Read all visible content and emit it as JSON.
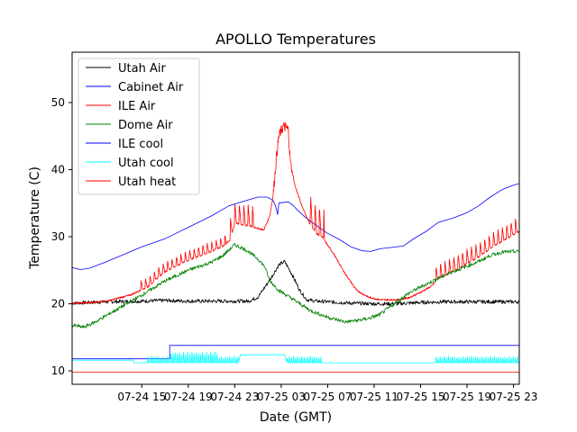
{
  "chart_data": {
    "type": "line",
    "title": "APOLLO Temperatures",
    "xlabel": "Date (GMT)",
    "ylabel": "Temperature (C)",
    "x_unit": "hours since 07-24 09:00 GMT",
    "xlim": [
      0,
      38.5
    ],
    "ylim": [
      8,
      57.5
    ],
    "x_ticks": [
      {
        "value": 6,
        "label": "07-24 15"
      },
      {
        "value": 10,
        "label": "07-24 19"
      },
      {
        "value": 14,
        "label": "07-24 23"
      },
      {
        "value": 18,
        "label": "07-25 03"
      },
      {
        "value": 22,
        "label": "07-25 07"
      },
      {
        "value": 26,
        "label": "07-25 11"
      },
      {
        "value": 30,
        "label": "07-25 15"
      },
      {
        "value": 34,
        "label": "07-25 19"
      },
      {
        "value": 38,
        "label": "07-25 23"
      }
    ],
    "y_ticks": [
      {
        "value": 10,
        "label": "10"
      },
      {
        "value": 20,
        "label": "20"
      },
      {
        "value": 30,
        "label": "30"
      },
      {
        "value": 40,
        "label": "40"
      },
      {
        "value": 50,
        "label": "50"
      }
    ],
    "legend_position": "top-left",
    "series": [
      {
        "name": "Utah Air",
        "color": "#000000",
        "style": "noisy",
        "points": [
          [
            0,
            20.1
          ],
          [
            3,
            20.3
          ],
          [
            6,
            20.4
          ],
          [
            8,
            20.5
          ],
          [
            10,
            20.4
          ],
          [
            12,
            20.4
          ],
          [
            14,
            20.4
          ],
          [
            15.2,
            20.4
          ],
          [
            16,
            21
          ],
          [
            17,
            23.5
          ],
          [
            17.8,
            25.8
          ],
          [
            18.3,
            26.3
          ],
          [
            18.9,
            24.5
          ],
          [
            19.6,
            22
          ],
          [
            20.2,
            20.6
          ],
          [
            21,
            20.4
          ],
          [
            22,
            20.3
          ],
          [
            24,
            20.1
          ],
          [
            26,
            20
          ],
          [
            28,
            20
          ],
          [
            30,
            20.2
          ],
          [
            32,
            20.3
          ],
          [
            34,
            20.3
          ],
          [
            36,
            20.3
          ],
          [
            38.5,
            20.3
          ]
        ]
      },
      {
        "name": "Cabinet Air",
        "color": "#0000ff",
        "style": "smooth",
        "points": [
          [
            0,
            25.4
          ],
          [
            0.7,
            25.1
          ],
          [
            1.5,
            25.3
          ],
          [
            3,
            26.3
          ],
          [
            6,
            28.5
          ],
          [
            8,
            29.7
          ],
          [
            10,
            31.4
          ],
          [
            12,
            33.1
          ],
          [
            13.5,
            34.6
          ],
          [
            15,
            35.4
          ],
          [
            16,
            35.9
          ],
          [
            16.8,
            35.9
          ],
          [
            17.3,
            35.4
          ],
          [
            17.5,
            34.6
          ],
          [
            17.7,
            33.3
          ],
          [
            17.8,
            35
          ],
          [
            18.6,
            35.2
          ],
          [
            19,
            34.7
          ],
          [
            19.5,
            33.8
          ],
          [
            20,
            33
          ],
          [
            21,
            31.7
          ],
          [
            22,
            30.5
          ],
          [
            23,
            29.6
          ],
          [
            24,
            28.5
          ],
          [
            25,
            27.9
          ],
          [
            25.7,
            27.8
          ],
          [
            26.5,
            28.2
          ],
          [
            27.5,
            28.4
          ],
          [
            28.5,
            28.6
          ],
          [
            29.5,
            29.8
          ],
          [
            30.5,
            30.8
          ],
          [
            31.5,
            32.1
          ],
          [
            33,
            32.9
          ],
          [
            34,
            33.6
          ],
          [
            35,
            34.6
          ],
          [
            36,
            35.9
          ],
          [
            37,
            37
          ],
          [
            38,
            37.7
          ],
          [
            38.5,
            37.9
          ]
        ]
      },
      {
        "name": "ILE Air",
        "color": "#ff0000",
        "style": "spiky",
        "base": [
          [
            0,
            20.1
          ],
          [
            1,
            20.1
          ],
          [
            3,
            20.4
          ],
          [
            5,
            21.3
          ],
          [
            6.5,
            22.5
          ],
          [
            8,
            24.8
          ],
          [
            10,
            26.5
          ],
          [
            12,
            27.8
          ],
          [
            13,
            28.6
          ],
          [
            13.6,
            29.5
          ],
          [
            14,
            32
          ],
          [
            15.5,
            31.5
          ],
          [
            16.5,
            31
          ],
          [
            17,
            33
          ],
          [
            17.3,
            36
          ],
          [
            17.6,
            42
          ],
          [
            17.8,
            45
          ],
          [
            18.2,
            46.5
          ],
          [
            18.6,
            46
          ],
          [
            18.8,
            41
          ],
          [
            19.2,
            37.5
          ],
          [
            19.7,
            35
          ],
          [
            20.3,
            32.5
          ],
          [
            21,
            30.5
          ],
          [
            21.5,
            30
          ],
          [
            22.5,
            27.5
          ],
          [
            23.5,
            24.5
          ],
          [
            24.5,
            22
          ],
          [
            25.5,
            21
          ],
          [
            26.5,
            20.6
          ],
          [
            28,
            20.6
          ],
          [
            29,
            20.9
          ],
          [
            30,
            21.7
          ],
          [
            31,
            22.7
          ],
          [
            31.5,
            23.8
          ],
          [
            32,
            24.1
          ],
          [
            33.5,
            25.5
          ],
          [
            35,
            27
          ],
          [
            36.5,
            28.8
          ],
          [
            38.5,
            30.8
          ]
        ],
        "spike_segments": [
          [
            5.9,
            13.2,
            1.5
          ],
          [
            13.6,
            15.6,
            3.2
          ],
          [
            20.5,
            21.7,
            4.5
          ],
          [
            31.3,
            38.5,
            2.2
          ]
        ]
      },
      {
        "name": "Dome Air",
        "color": "#008000",
        "style": "noisy",
        "points": [
          [
            0,
            16.8
          ],
          [
            1,
            16.5
          ],
          [
            2,
            17.3
          ],
          [
            4,
            19.3
          ],
          [
            6,
            21.3
          ],
          [
            8,
            23.4
          ],
          [
            10,
            25
          ],
          [
            12,
            26.2
          ],
          [
            13,
            27.2
          ],
          [
            14,
            28.8
          ],
          [
            15,
            28
          ],
          [
            16,
            26.7
          ],
          [
            16.6,
            25.5
          ],
          [
            17,
            23.5
          ],
          [
            17.8,
            22
          ],
          [
            19,
            20.7
          ],
          [
            20.5,
            19
          ],
          [
            22,
            18
          ],
          [
            23.5,
            17.3
          ],
          [
            24.5,
            17.5
          ],
          [
            25.5,
            17.8
          ],
          [
            26.5,
            18.4
          ],
          [
            27.5,
            19.7
          ],
          [
            29,
            21.6
          ],
          [
            30,
            22.5
          ],
          [
            31.3,
            23.6
          ],
          [
            32.5,
            24.6
          ],
          [
            34,
            25.6
          ],
          [
            35,
            26.3
          ],
          [
            36,
            27.2
          ],
          [
            37,
            27.7
          ],
          [
            38.5,
            27.8
          ]
        ]
      },
      {
        "name": "ILE cool",
        "color": "#0000ff",
        "style": "step",
        "points": [
          [
            0,
            11.8
          ],
          [
            8.4,
            11.8
          ],
          [
            8.4,
            13.8
          ],
          [
            38.5,
            13.8
          ]
        ]
      },
      {
        "name": "Utah cool",
        "color": "#00ffff",
        "style": "spiky",
        "base": [
          [
            0,
            11.6
          ],
          [
            5.3,
            11.6
          ],
          [
            5.3,
            11.2
          ],
          [
            38.5,
            11.2
          ]
        ],
        "spike_segments": [
          [
            6.5,
            12.5,
            1
          ],
          [
            8.5,
            14.3,
            1
          ],
          [
            18.5,
            20.5,
            1
          ],
          [
            20.5,
            21.5,
            1
          ],
          [
            31.3,
            38.5,
            1
          ]
        ],
        "plateau": [
          [
            14.3,
            11.2
          ],
          [
            14.5,
            12.4
          ],
          [
            18.3,
            12.4
          ],
          [
            18.5,
            11.2
          ]
        ]
      },
      {
        "name": "Utah heat",
        "color": "#ff0000",
        "style": "smooth",
        "points": [
          [
            0,
            9.8
          ],
          [
            38.5,
            9.8
          ]
        ]
      }
    ]
  }
}
